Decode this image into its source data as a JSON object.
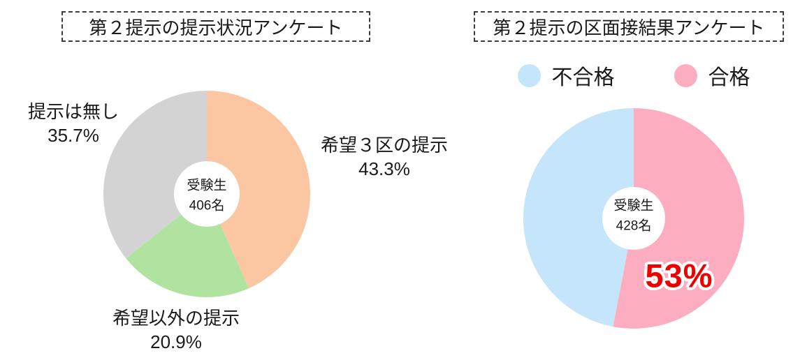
{
  "chart_data": [
    {
      "type": "pie",
      "subtype": "donut",
      "title": "第２提示の提示状況アンケート",
      "start_angle_deg": 0,
      "direction": "clockwise",
      "legend_position": "none",
      "center_text": {
        "line1": "受験生",
        "line2": "406名"
      },
      "slices": [
        {
          "label": "希望３区の提示",
          "value": 43.3,
          "display": "43.3%",
          "color": "#FBC7A3"
        },
        {
          "label": "希望以外の提示",
          "value": 20.9,
          "display": "20.9%",
          "color": "#B0E3A0"
        },
        {
          "label": "提示は無し",
          "value": 35.7,
          "display": "35.7%",
          "color": "#D3D3D3"
        }
      ]
    },
    {
      "type": "pie",
      "subtype": "donut",
      "title": "第２提示の区面接結果アンケート",
      "start_angle_deg": 0,
      "direction": "clockwise",
      "legend_position": "top",
      "center_text": {
        "line1": "受験生",
        "line2": "428名"
      },
      "slices": [
        {
          "label": "合格",
          "value": 53,
          "display": "53%",
          "color": "#FCADBF"
        },
        {
          "label": "不合格",
          "value": 47,
          "display": "",
          "color": "#C4E5FA"
        }
      ],
      "annotation": {
        "text": "53%",
        "color": "#EE0000"
      }
    }
  ]
}
